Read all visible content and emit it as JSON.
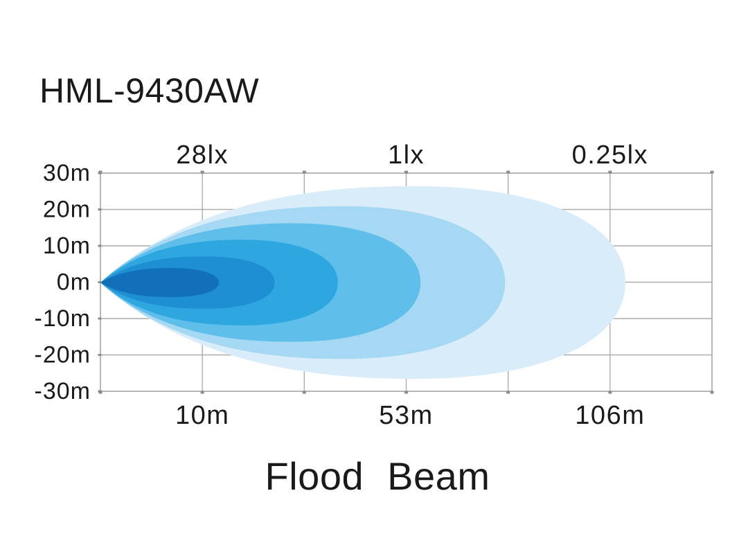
{
  "title": "HML-9430AW",
  "caption": "Flood Beam",
  "chart_data": {
    "type": "area",
    "title": "HML-9430AW",
    "caption": "Flood Beam",
    "background": "#FFFFFF",
    "grid_color": "#ACACAC",
    "tick_nub_color": "#8B8B8B",
    "text_color": "#1A1A1A",
    "x_axis": {
      "cols": 6,
      "top_tick_labels": [
        {
          "label": "28lx",
          "col": 1
        },
        {
          "label": "1lx",
          "col": 3
        },
        {
          "label": "0.25lx",
          "col": 5
        }
      ],
      "bottom_tick_labels": [
        {
          "label": "10m",
          "col": 1
        },
        {
          "label": "53m",
          "col": 3
        },
        {
          "label": "106m",
          "col": 5
        }
      ]
    },
    "y_axis": {
      "rows": 6,
      "range_m": [
        -30,
        30
      ],
      "tick_labels": [
        "30m",
        "20m",
        "10m",
        "0m",
        "-10m",
        "-20m",
        "-30m"
      ]
    },
    "beam_lobes": [
      {
        "color": "#D8ECF9",
        "end_col": 5.15,
        "half_height_m": 26.5
      },
      {
        "color": "#A5D8F3",
        "end_col": 3.97,
        "half_height_m": 21.0
      },
      {
        "color": "#5FBFEA",
        "end_col": 3.14,
        "half_height_m": 16.3
      },
      {
        "color": "#2EA7E0",
        "end_col": 2.33,
        "half_height_m": 11.8
      },
      {
        "color": "#1E8FD2",
        "end_col": 1.71,
        "half_height_m": 7.2
      },
      {
        "color": "#1170B9",
        "end_col": 1.16,
        "half_height_m": 4.0
      }
    ]
  }
}
